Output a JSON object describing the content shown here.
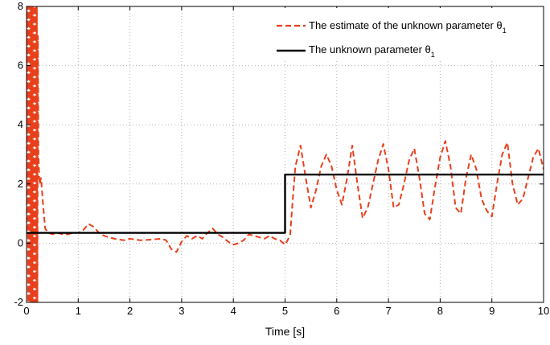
{
  "chart_data": {
    "type": "line",
    "title": "",
    "xlabel": "Time [s]",
    "ylabel": "",
    "xlim": [
      0,
      10
    ],
    "ylim": [
      -2,
      8
    ],
    "xticks": [
      0,
      1,
      2,
      3,
      4,
      5,
      6,
      7,
      8,
      9,
      10
    ],
    "yticks": [
      -2,
      0,
      2,
      4,
      6,
      8
    ],
    "grid": true,
    "legend_position": "top-right",
    "colors": {
      "estimate": "#e8401c",
      "true": "#000000",
      "grid": "#b0b0b0"
    },
    "series": [
      {
        "name": "The estimate of the unknown parameter θ",
        "name_subscript": "1",
        "style": "dashed",
        "x": [
          0,
          0.02,
          0.03,
          0.04,
          0.05,
          0.06,
          0.07,
          0.08,
          0.09,
          0.1,
          0.11,
          0.12,
          0.13,
          0.14,
          0.15,
          0.16,
          0.17,
          0.18,
          0.19,
          0.2,
          0.21,
          0.22,
          0.23,
          0.25,
          0.28,
          0.32,
          0.36,
          0.42,
          0.5,
          0.6,
          0.7,
          0.8,
          0.9,
          1.0,
          1.1,
          1.2,
          1.3,
          1.4,
          1.5,
          1.6,
          1.7,
          1.8,
          1.9,
          2.0,
          2.2,
          2.4,
          2.6,
          2.7,
          2.8,
          2.9,
          3.0,
          3.1,
          3.2,
          3.3,
          3.4,
          3.5,
          3.6,
          3.7,
          3.8,
          3.9,
          4.0,
          4.1,
          4.2,
          4.3,
          4.4,
          4.5,
          4.6,
          4.7,
          4.8,
          4.9,
          5.0,
          5.05,
          5.1,
          5.15,
          5.2,
          5.3,
          5.4,
          5.5,
          5.6,
          5.7,
          5.8,
          5.9,
          6.0,
          6.1,
          6.2,
          6.3,
          6.4,
          6.5,
          6.6,
          6.7,
          6.8,
          6.9,
          7.0,
          7.1,
          7.2,
          7.3,
          7.4,
          7.5,
          7.6,
          7.7,
          7.8,
          7.9,
          8.0,
          8.1,
          8.2,
          8.3,
          8.4,
          8.5,
          8.6,
          8.7,
          8.8,
          8.9,
          9.0,
          9.1,
          9.2,
          9.3,
          9.4,
          9.5,
          9.6,
          9.7,
          9.8,
          9.9,
          10.0
        ],
        "y": [
          0.4,
          8.0,
          -2.0,
          8.0,
          -2.0,
          8.0,
          -2.0,
          8.0,
          -2.0,
          8.0,
          -2.0,
          8.0,
          -2.0,
          8.0,
          -2.0,
          8.0,
          -2.0,
          8.0,
          -2.0,
          8.0,
          -2.0,
          7.0,
          3.0,
          2.0,
          2.2,
          1.3,
          0.5,
          0.35,
          0.3,
          0.35,
          0.3,
          0.3,
          0.35,
          0.35,
          0.45,
          0.65,
          0.55,
          0.35,
          0.25,
          0.2,
          0.15,
          0.12,
          0.1,
          0.15,
          0.1,
          0.12,
          0.15,
          0.1,
          -0.2,
          -0.3,
          0.05,
          0.25,
          0.15,
          0.25,
          0.15,
          0.35,
          0.5,
          0.3,
          0.2,
          0.05,
          -0.05,
          0.0,
          0.1,
          0.3,
          0.25,
          0.2,
          0.15,
          0.25,
          0.15,
          0.1,
          -0.05,
          0.1,
          0.3,
          1.5,
          2.6,
          3.3,
          2.2,
          1.2,
          1.8,
          2.6,
          3.0,
          2.6,
          1.8,
          1.3,
          2.2,
          3.3,
          2.0,
          0.85,
          1.2,
          2.0,
          2.8,
          3.35,
          2.5,
          1.2,
          1.3,
          2.0,
          2.8,
          3.2,
          2.2,
          1.0,
          0.8,
          1.9,
          2.9,
          3.45,
          2.6,
          1.2,
          1.0,
          2.2,
          3.0,
          2.5,
          1.5,
          1.1,
          0.9,
          2.0,
          3.0,
          3.4,
          2.0,
          1.3,
          1.5,
          2.2,
          2.9,
          3.2,
          2.5
        ],
        "color": "#e8401c"
      },
      {
        "name": "The unknown parameter θ",
        "name_subscript": "1",
        "style": "solid",
        "x": [
          0,
          5,
          5,
          10
        ],
        "y": [
          0.35,
          0.35,
          2.32,
          2.32
        ],
        "color": "#000000"
      }
    ]
  }
}
